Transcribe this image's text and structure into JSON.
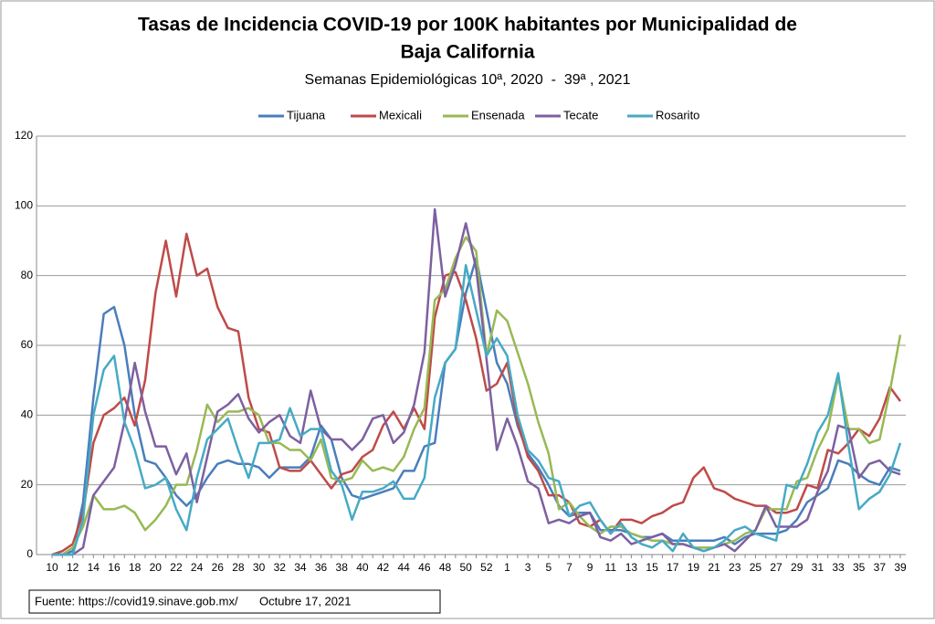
{
  "chart_data": {
    "type": "line",
    "title": [
      "Tasas de Incidencia COVID-19 por 100K habitantes por Municipalidad de",
      "Baja California"
    ],
    "subtitle": "Semanas Epidemiológicas 10ª, 2020  -  39ª , 2021",
    "source": "Fuente: https://covid19.sinave.gob.mx/",
    "date": "Octubre 17, 2021",
    "categories": [
      "10",
      null,
      "12",
      null,
      "14",
      null,
      "16",
      null,
      "18",
      null,
      "20",
      null,
      "22",
      null,
      "24",
      null,
      "26",
      null,
      "28",
      null,
      "30",
      null,
      "32",
      null,
      "34",
      null,
      "36",
      null,
      "38",
      null,
      "40",
      null,
      "42",
      null,
      "44",
      null,
      "46",
      null,
      "48",
      null,
      "50",
      null,
      "52",
      null,
      "1",
      null,
      "3",
      null,
      "5",
      null,
      "7",
      null,
      "9",
      null,
      "11",
      null,
      "13",
      null,
      "15",
      null,
      "17",
      null,
      "19",
      null,
      "21",
      null,
      "23",
      null,
      "25",
      null,
      "27",
      null,
      "29",
      null,
      "31",
      null,
      "33",
      null,
      "35",
      null,
      "37",
      null,
      "39"
    ],
    "ylim": [
      0,
      120
    ],
    "yticks": [
      0,
      20,
      40,
      60,
      80,
      100,
      120
    ],
    "grid": true,
    "legend": "top",
    "series": [
      {
        "name": "Tijuana",
        "color": "#4a7ebb",
        "values": [
          0,
          0,
          1,
          15,
          45,
          69,
          71,
          60,
          40,
          27,
          26,
          22,
          17,
          14,
          17,
          22,
          26,
          27,
          26,
          26,
          25,
          22,
          25,
          25,
          25,
          28,
          37,
          33,
          22,
          17,
          16,
          17,
          18,
          19,
          24,
          24,
          31,
          32,
          55,
          59,
          75,
          85,
          70,
          55,
          49,
          37,
          29,
          25,
          20,
          14,
          11,
          12,
          12,
          7,
          7,
          7,
          6,
          5,
          5,
          6,
          4,
          4,
          4,
          4,
          4,
          5,
          3,
          5,
          6,
          6,
          6,
          7,
          10,
          15,
          17,
          19,
          27,
          26,
          23,
          21,
          20,
          25,
          24
        ]
      },
      {
        "name": "Mexicali",
        "color": "#be4b48",
        "values": [
          0,
          1,
          3,
          12,
          32,
          40,
          42,
          45,
          37,
          50,
          75,
          90,
          74,
          92,
          80,
          82,
          71,
          65,
          64,
          45,
          36,
          35,
          25,
          24,
          24,
          27,
          23,
          19,
          23,
          24,
          28,
          30,
          37,
          41,
          36,
          42,
          36,
          68,
          80,
          81,
          73,
          62,
          47,
          49,
          55,
          38,
          28,
          24,
          17,
          17,
          15,
          9,
          8,
          10,
          6,
          10,
          10,
          9,
          11,
          12,
          14,
          15,
          22,
          25,
          19,
          18,
          16,
          15,
          14,
          14,
          12,
          12,
          13,
          20,
          19,
          30,
          29,
          32,
          36,
          34,
          39,
          48,
          44
        ]
      },
      {
        "name": "Ensenada",
        "color": "#98b954",
        "values": [
          0,
          0,
          2,
          8,
          17,
          13,
          13,
          14,
          12,
          7,
          10,
          14,
          20,
          20,
          30,
          43,
          38,
          41,
          41,
          42,
          40,
          32,
          32,
          30,
          30,
          27,
          33,
          22,
          21,
          22,
          27,
          24,
          25,
          24,
          28,
          36,
          42,
          73,
          76,
          85,
          91,
          87,
          57,
          70,
          67,
          58,
          49,
          38,
          29,
          13,
          15,
          11,
          8,
          6,
          8,
          8,
          6,
          5,
          4,
          4,
          3,
          3,
          2,
          2,
          2,
          3,
          4,
          6,
          7,
          13,
          13,
          13,
          21,
          22,
          30,
          36,
          51,
          36,
          36,
          32,
          33,
          47,
          63
        ]
      },
      {
        "name": "Tecate",
        "color": "#7d60a0",
        "values": [
          0,
          0,
          0,
          2,
          17,
          21,
          25,
          38,
          55,
          41,
          31,
          31,
          23,
          29,
          15,
          28,
          41,
          43,
          46,
          39,
          35,
          38,
          40,
          34,
          32,
          47,
          36,
          33,
          33,
          30,
          33,
          39,
          40,
          32,
          35,
          43,
          58,
          99,
          74,
          83,
          95,
          82,
          56,
          30,
          39,
          31,
          21,
          19,
          9,
          10,
          9,
          11,
          12,
          5,
          4,
          6,
          3,
          4,
          5,
          6,
          3,
          3,
          2,
          1,
          2,
          3,
          1,
          4,
          7,
          14,
          8,
          8,
          8,
          10,
          18,
          24,
          37,
          36,
          22,
          26,
          27,
          24,
          23
        ]
      },
      {
        "name": "Rosarito",
        "color": "#46aac5",
        "values": [
          0,
          0,
          0,
          10,
          40,
          53,
          57,
          38,
          30,
          19,
          20,
          22,
          13,
          7,
          22,
          33,
          36,
          39,
          30,
          22,
          32,
          32,
          33,
          42,
          34,
          36,
          36,
          24,
          20,
          10,
          18,
          18,
          19,
          21,
          16,
          16,
          22,
          45,
          55,
          59,
          83,
          70,
          57,
          62,
          57,
          40,
          30,
          27,
          22,
          21,
          11,
          14,
          15,
          10,
          6,
          9,
          5,
          3,
          2,
          4,
          1,
          6,
          2,
          1,
          2,
          4,
          7,
          8,
          6,
          5,
          4,
          20,
          19,
          26,
          35,
          40,
          52,
          31,
          13,
          16,
          18,
          23,
          32
        ]
      }
    ]
  }
}
